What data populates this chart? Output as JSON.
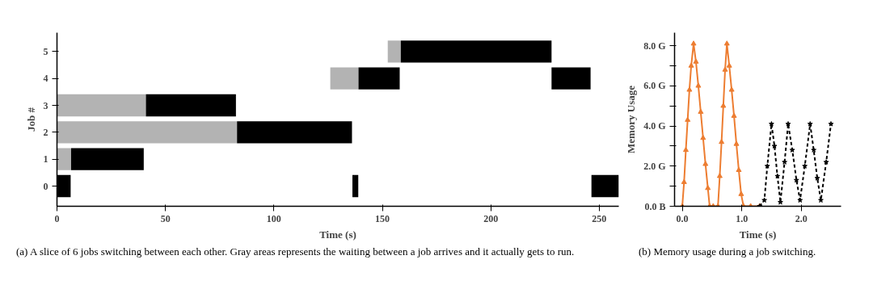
{
  "chart_data": [
    {
      "type": "bar",
      "orientation": "horizontal",
      "xlabel": "Time (s)",
      "ylabel": "Job #",
      "categories": [
        "5",
        "4",
        "3",
        "2",
        "1",
        "0"
      ],
      "xlim": [
        0,
        259
      ],
      "xticks": [
        0,
        50,
        100,
        150,
        200,
        250
      ],
      "grid": false,
      "series": [
        {
          "color": "#b3b3b3",
          "base": [
            152.5,
            126,
            0,
            0,
            0,
            null
          ],
          "values": [
            6,
            13,
            41,
            83,
            6.5,
            null
          ]
        },
        {
          "color": "#000000",
          "base": [
            158.5,
            139,
            41,
            83,
            6.5,
            0
          ],
          "values": [
            69.5,
            19,
            41.5,
            53,
            33.5,
            6.3
          ]
        },
        {
          "color": "#000000",
          "base": [
            null,
            228,
            null,
            null,
            null,
            136.2
          ],
          "values": [
            null,
            18,
            null,
            null,
            null,
            2.7
          ]
        },
        {
          "color": "#000000",
          "base": [
            null,
            null,
            null,
            null,
            null,
            246.4
          ],
          "values": [
            null,
            null,
            null,
            null,
            null,
            12.6
          ]
        }
      ],
      "annotations": [
        "(a) A slice of 6 jobs switching between each other. Gray areas represents the waiting between a job arrives and it actually gets to run."
      ]
    },
    {
      "type": "line",
      "xlabel": "Time (s)",
      "ylabel": "Memory Usage",
      "xlim": [
        -0.13,
        2.67
      ],
      "ylim": [
        0,
        8.65
      ],
      "grid": false,
      "xticks": [
        {
          "value": 0,
          "label": "0.0"
        },
        {
          "value": 1,
          "label": "1.0"
        },
        {
          "value": 2,
          "label": "2.0"
        }
      ],
      "yticks": [
        {
          "value": 0,
          "label": "0.0 B"
        },
        {
          "value": 1,
          "label": null
        },
        {
          "value": 2,
          "label": "2.0 G"
        },
        {
          "value": 3,
          "label": null
        },
        {
          "value": 4,
          "label": "4.0 G"
        },
        {
          "value": 5,
          "label": null
        },
        {
          "value": 6,
          "label": "6.0 G"
        },
        {
          "value": 7,
          "label": null
        },
        {
          "value": 8,
          "label": "8.0 G"
        }
      ],
      "series": [
        {
          "color": "#ed7d31",
          "marker": "triangle",
          "line_style": "solid",
          "x": [
            0.0,
            0.03,
            0.06,
            0.09,
            0.12,
            0.15,
            0.19,
            0.23,
            0.27,
            0.31,
            0.35,
            0.39,
            0.43,
            0.46,
            0.52,
            0.6,
            0.63,
            0.66,
            0.69,
            0.72,
            0.75,
            0.79,
            0.83,
            0.87,
            0.91,
            0.95,
            0.99,
            1.03,
            1.15,
            1.3
          ],
          "values": [
            0,
            1.2,
            2.8,
            4.3,
            5.8,
            7.0,
            8.1,
            7.2,
            6.0,
            4.7,
            3.4,
            2.1,
            0.9,
            0,
            0,
            0,
            1.5,
            3.2,
            5.0,
            6.8,
            8.1,
            7.0,
            5.8,
            4.5,
            3.1,
            1.8,
            0.6,
            0,
            0,
            0
          ]
        },
        {
          "color": "#000000",
          "marker": "star",
          "line_style": "dashed",
          "x": [
            1.3,
            1.38,
            1.43,
            1.5,
            1.55,
            1.6,
            1.65,
            1.72,
            1.78,
            1.85,
            1.92,
            1.98,
            2.06,
            2.15,
            2.21,
            2.27,
            2.33,
            2.42,
            2.5
          ],
          "values": [
            0,
            0.3,
            2.0,
            4.1,
            3.0,
            1.5,
            0.2,
            2.2,
            4.1,
            2.8,
            1.3,
            0.3,
            2.0,
            4.1,
            2.8,
            1.4,
            0.3,
            2.2,
            4.1
          ]
        }
      ],
      "annotations": [
        "(b) Memory usage during a job switching."
      ]
    }
  ]
}
